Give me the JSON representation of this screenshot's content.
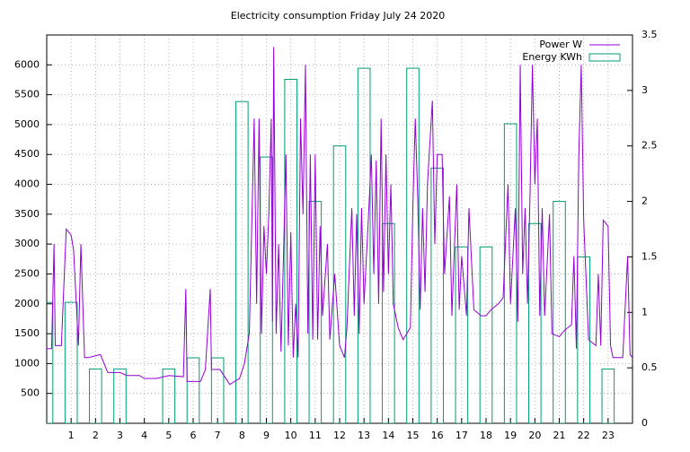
{
  "chart_data": {
    "type": "line-bar",
    "title": "Electricity consumption Friday July 24 2020",
    "xlim": [
      0,
      24
    ],
    "xticks": [
      1,
      2,
      3,
      4,
      5,
      6,
      7,
      8,
      9,
      10,
      11,
      12,
      13,
      14,
      15,
      16,
      17,
      18,
      19,
      20,
      21,
      22,
      23
    ],
    "ylim": [
      0,
      6500
    ],
    "yticks": [
      500,
      1000,
      1500,
      2000,
      2500,
      3000,
      3500,
      4000,
      4500,
      5000,
      5500,
      6000
    ],
    "y2lim": [
      0,
      3.5
    ],
    "y2ticks": [
      0,
      0.5,
      1,
      1.5,
      2,
      2.5,
      3,
      3.5
    ],
    "grid": true,
    "legend": "top-right",
    "series": [
      {
        "name": "Power W",
        "color": "#9400d3",
        "style": "line",
        "x": [
          0,
          0.2,
          0.3,
          0.35,
          0.6,
          0.8,
          1.0,
          1.1,
          1.3,
          1.4,
          1.55,
          1.7,
          2.2,
          2.5,
          3.0,
          3.3,
          3.8,
          4.0,
          4.5,
          5.0,
          5.6,
          5.7,
          5.75,
          6.3,
          6.5,
          6.7,
          6.75,
          7.1,
          7.5,
          7.9,
          8.1,
          8.3,
          8.4,
          8.5,
          8.6,
          8.7,
          8.8,
          8.9,
          9.0,
          9.1,
          9.2,
          9.25,
          9.3,
          9.4,
          9.5,
          9.6,
          9.7,
          9.8,
          9.9,
          10.0,
          10.1,
          10.2,
          10.3,
          10.4,
          10.5,
          10.6,
          10.7,
          10.8,
          10.9,
          11.0,
          11.1,
          11.2,
          11.3,
          11.5,
          11.6,
          11.8,
          12.0,
          12.2,
          12.3,
          12.5,
          12.6,
          12.7,
          12.8,
          12.9,
          13.0,
          13.2,
          13.3,
          13.4,
          13.5,
          13.6,
          13.7,
          13.8,
          13.9,
          14.0,
          14.1,
          14.2,
          14.4,
          14.6,
          14.9,
          15.0,
          15.1,
          15.2,
          15.3,
          15.4,
          15.5,
          15.6,
          15.8,
          15.9,
          16.0,
          16.2,
          16.3,
          16.5,
          16.6,
          16.8,
          16.9,
          17.0,
          17.2,
          17.3,
          17.5,
          17.8,
          18.0,
          18.2,
          18.5,
          18.7,
          18.9,
          19.0,
          19.2,
          19.3,
          19.4,
          19.5,
          19.6,
          19.7,
          19.8,
          19.9,
          20.0,
          20.1,
          20.2,
          20.3,
          20.4,
          20.6,
          20.7,
          21.0,
          21.2,
          21.5,
          21.6,
          21.7,
          21.8,
          21.9,
          22.0,
          22.2,
          22.5,
          22.6,
          22.7,
          22.8,
          23.0,
          23.1,
          23.2,
          23.6,
          23.8,
          23.9,
          24.0
        ],
        "values": [
          1250,
          1250,
          3000,
          1300,
          1300,
          3250,
          3150,
          2900,
          1300,
          3000,
          1100,
          1100,
          1150,
          850,
          850,
          800,
          800,
          750,
          750,
          800,
          780,
          2250,
          700,
          700,
          900,
          2250,
          900,
          900,
          650,
          750,
          1000,
          1500,
          3300,
          5100,
          2000,
          5100,
          1500,
          3300,
          2500,
          3500,
          5100,
          1700,
          6300,
          1500,
          3000,
          1200,
          2800,
          4500,
          1300,
          3200,
          1100,
          2000,
          1100,
          5100,
          3500,
          6000,
          1500,
          4500,
          1400,
          4500,
          1400,
          3300,
          1800,
          3000,
          1400,
          2500,
          1300,
          1100,
          1600,
          3600,
          1800,
          3500,
          1500,
          3600,
          2000,
          3600,
          4500,
          2500,
          4400,
          2000,
          5100,
          2200,
          4500,
          2500,
          4000,
          2000,
          1600,
          1400,
          1600,
          3600,
          5100,
          3800,
          1900,
          3600,
          2200,
          4000,
          5400,
          3000,
          4500,
          4500,
          2500,
          3800,
          1800,
          4000,
          1900,
          2800,
          1800,
          3600,
          1900,
          1800,
          1800,
          1900,
          2000,
          2100,
          4000,
          2000,
          3600,
          1700,
          6000,
          2500,
          3600,
          2000,
          3800,
          6000,
          4000,
          5100,
          1800,
          3600,
          1800,
          3500,
          1500,
          1450,
          1550,
          1650,
          2800,
          1250,
          4500,
          6000,
          3400,
          1400,
          1300,
          2500,
          1300,
          3400,
          3300,
          1300,
          1100,
          1100,
          2800,
          1150,
          1100
        ]
      },
      {
        "name": "Energy KWh",
        "color": "#009e73",
        "style": "boxes",
        "axis": "y2",
        "x": [
          0,
          1,
          2,
          3,
          4,
          5,
          6,
          7,
          8,
          9,
          10,
          11,
          12,
          13,
          14,
          15,
          16,
          17,
          18,
          19,
          20,
          21,
          22,
          23
        ],
        "values": [
          1.09,
          1.09,
          0.49,
          0.49,
          0,
          0.49,
          0.59,
          0.59,
          2.9,
          2.4,
          3.1,
          2.0,
          2.5,
          3.2,
          1.8,
          3.2,
          2.3,
          1.59,
          1.59,
          2.7,
          1.8,
          2.0,
          1.5,
          0.49
        ]
      }
    ]
  }
}
